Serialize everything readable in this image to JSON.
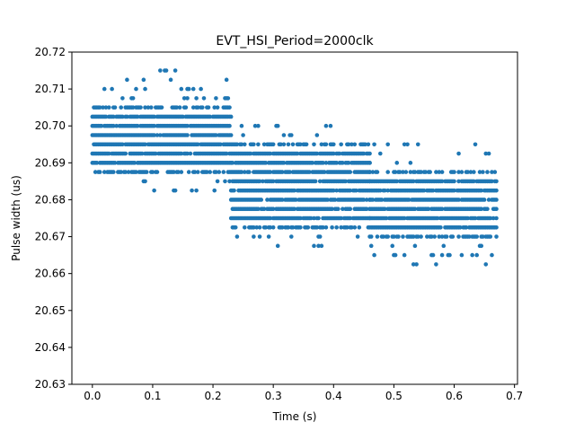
{
  "chart_data": {
    "type": "scatter",
    "title": "EVT_HSI_Period=2000clk",
    "xlabel": "Time (s)",
    "ylabel": "Pulse width (us)",
    "xlim": [
      -0.034,
      0.705
    ],
    "ylim": [
      20.63,
      20.72
    ],
    "xticks": [
      0.0,
      0.1,
      0.2,
      0.3,
      0.4,
      0.5,
      0.6,
      0.7
    ],
    "xtick_labels": [
      "0.0",
      "0.1",
      "0.2",
      "0.3",
      "0.4",
      "0.5",
      "0.6",
      "0.7"
    ],
    "yticks": [
      20.63,
      20.64,
      20.65,
      20.66,
      20.67,
      20.68,
      20.69,
      20.7,
      20.71,
      20.72
    ],
    "ytick_labels": [
      "20.63",
      "20.64",
      "20.65",
      "20.66",
      "20.67",
      "20.68",
      "20.69",
      "20.70",
      "20.71",
      "20.72"
    ],
    "grid": false,
    "legend": "none",
    "marker_color": "#1f77b4",
    "y_quantum": 0.0025,
    "series": [
      {
        "x_range": [
          0.0,
          0.23
        ],
        "x_step": 0.0025,
        "core_y_range": [
          20.6875,
          20.705
        ],
        "sparse_y_values": [
          20.6825,
          20.685,
          20.7075,
          20.71,
          20.7125,
          20.715
        ]
      },
      {
        "x_range": [
          0.23,
          0.46
        ],
        "x_step": 0.0025,
        "core_y_range": [
          20.6725,
          20.695
        ],
        "sparse_y_values": [
          20.6675,
          20.67,
          20.6975,
          20.7
        ]
      },
      {
        "x_range": [
          0.46,
          0.67
        ],
        "x_step": 0.0025,
        "core_y_range": [
          20.67,
          20.6875
        ],
        "sparse_y_values": [
          20.6625,
          20.665,
          20.6675,
          20.69,
          20.6925,
          20.695
        ]
      }
    ]
  }
}
